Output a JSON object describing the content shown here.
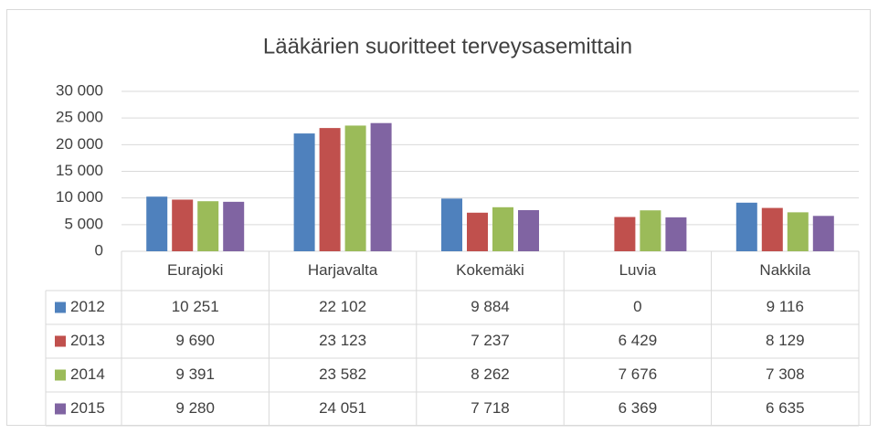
{
  "chart_data": {
    "type": "bar",
    "title": "Lääkärien suoritteet terveysasemittain",
    "categories": [
      "Eurajoki",
      "Harjavalta",
      "Kokemäki",
      "Luvia",
      "Nakkila"
    ],
    "series": [
      {
        "name": "2012",
        "color": "#4f81bd",
        "values": [
          10251,
          22102,
          9884,
          0,
          9116
        ],
        "value_labels": [
          "10 251",
          "22 102",
          "9 884",
          "0",
          "9 116"
        ]
      },
      {
        "name": "2013",
        "color": "#c0504d",
        "values": [
          9690,
          23123,
          7237,
          6429,
          8129
        ],
        "value_labels": [
          "9 690",
          "23 123",
          "7 237",
          "6 429",
          "8 129"
        ]
      },
      {
        "name": "2014",
        "color": "#9bbb59",
        "values": [
          9391,
          23582,
          8262,
          7676,
          7308
        ],
        "value_labels": [
          "9 391",
          "23 582",
          "8 262",
          "7 676",
          "7 308"
        ]
      },
      {
        "name": "2015",
        "color": "#8064a2",
        "values": [
          9280,
          24051,
          7718,
          6369,
          6635
        ],
        "value_labels": [
          "9 280",
          "24 051",
          "7 718",
          "6 369",
          "6 635"
        ]
      }
    ],
    "ylim": [
      0,
      30000
    ],
    "yticks": [
      0,
      {
        "value": 5000,
        "label": "5 000"
      },
      {
        "value": 10000,
        "label": "10 000"
      },
      {
        "value": 15000,
        "label": "15 000"
      },
      {
        "value": 20000,
        "label": "20 000"
      },
      {
        "value": 25000,
        "label": "25 000"
      },
      {
        "value": 30000,
        "label": "30 000"
      }
    ],
    "grid": true
  }
}
